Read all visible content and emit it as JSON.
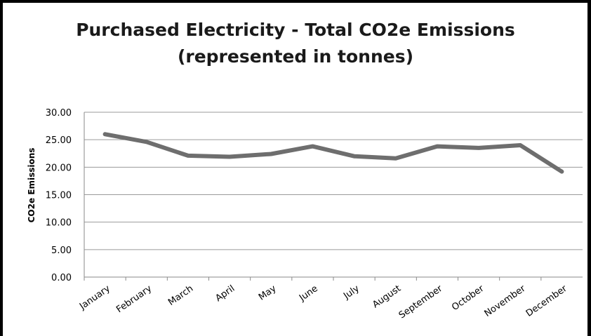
{
  "chart_data": {
    "type": "line",
    "title_line1": "Purchased Electricity - Total CO2e Emissions",
    "title_line2": "(represented in tonnes)",
    "xlabel": "",
    "ylabel": "CO2e Emissions",
    "categories": [
      "January",
      "February",
      "March",
      "April",
      "May",
      "June",
      "July",
      "August",
      "September",
      "October",
      "November",
      "December"
    ],
    "series": [
      {
        "values": [
          26.0,
          24.6,
          22.1,
          21.9,
          22.4,
          23.8,
          22.0,
          21.6,
          23.8,
          23.5,
          24.0,
          19.2
        ],
        "color": "#6e6e6e"
      }
    ],
    "ylim": [
      0,
      30
    ],
    "yticks": [
      "0.00",
      "5.00",
      "10.00",
      "15.00",
      "20.00",
      "25.00",
      "30.00"
    ],
    "grid": true,
    "legend": "none"
  }
}
